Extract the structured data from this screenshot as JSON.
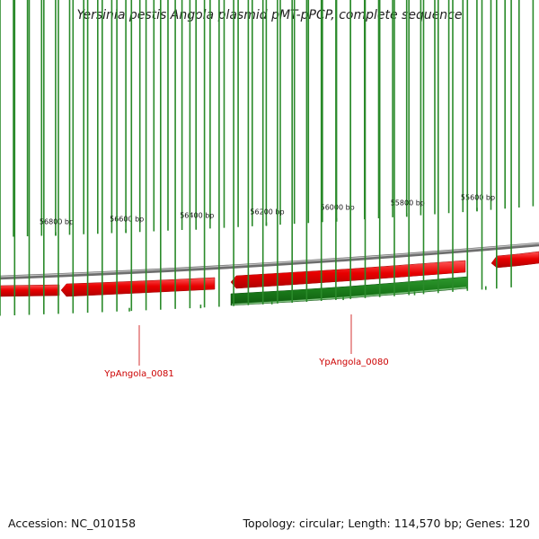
{
  "title": "Yersinia pestis Angola plasmid pMT-pPCP, complete sequence",
  "colors": {
    "backbone": "#8a8a8a",
    "reverse_gene": "#ee0000",
    "forward_gene": "#1a7a1a",
    "ticks": "#2a8a2a",
    "label": "#cc0000"
  },
  "scale": {
    "unit": "bp",
    "labeled_ticks": [
      {
        "position": 56800,
        "label": "56800 bp"
      },
      {
        "position": 56600,
        "label": "56600 bp"
      },
      {
        "position": 56400,
        "label": "56400 bp"
      },
      {
        "position": 56200,
        "label": "56200 bp"
      },
      {
        "position": 56000,
        "label": "56000 bp"
      },
      {
        "position": 55800,
        "label": "55800 bp"
      },
      {
        "position": 55600,
        "label": "55600 bp"
      }
    ]
  },
  "genes": [
    {
      "name": "YpAngola_0081",
      "strand": "reverse",
      "labeled": true
    },
    {
      "name": "YpAngola_0080",
      "strand": "reverse",
      "labeled": true
    },
    {
      "name": "",
      "strand": "forward",
      "labeled": false
    }
  ],
  "footer": {
    "accession": "Accession: NC_010158",
    "summary": "Topology: circular; Length: 114,570 bp; Genes: 120"
  }
}
